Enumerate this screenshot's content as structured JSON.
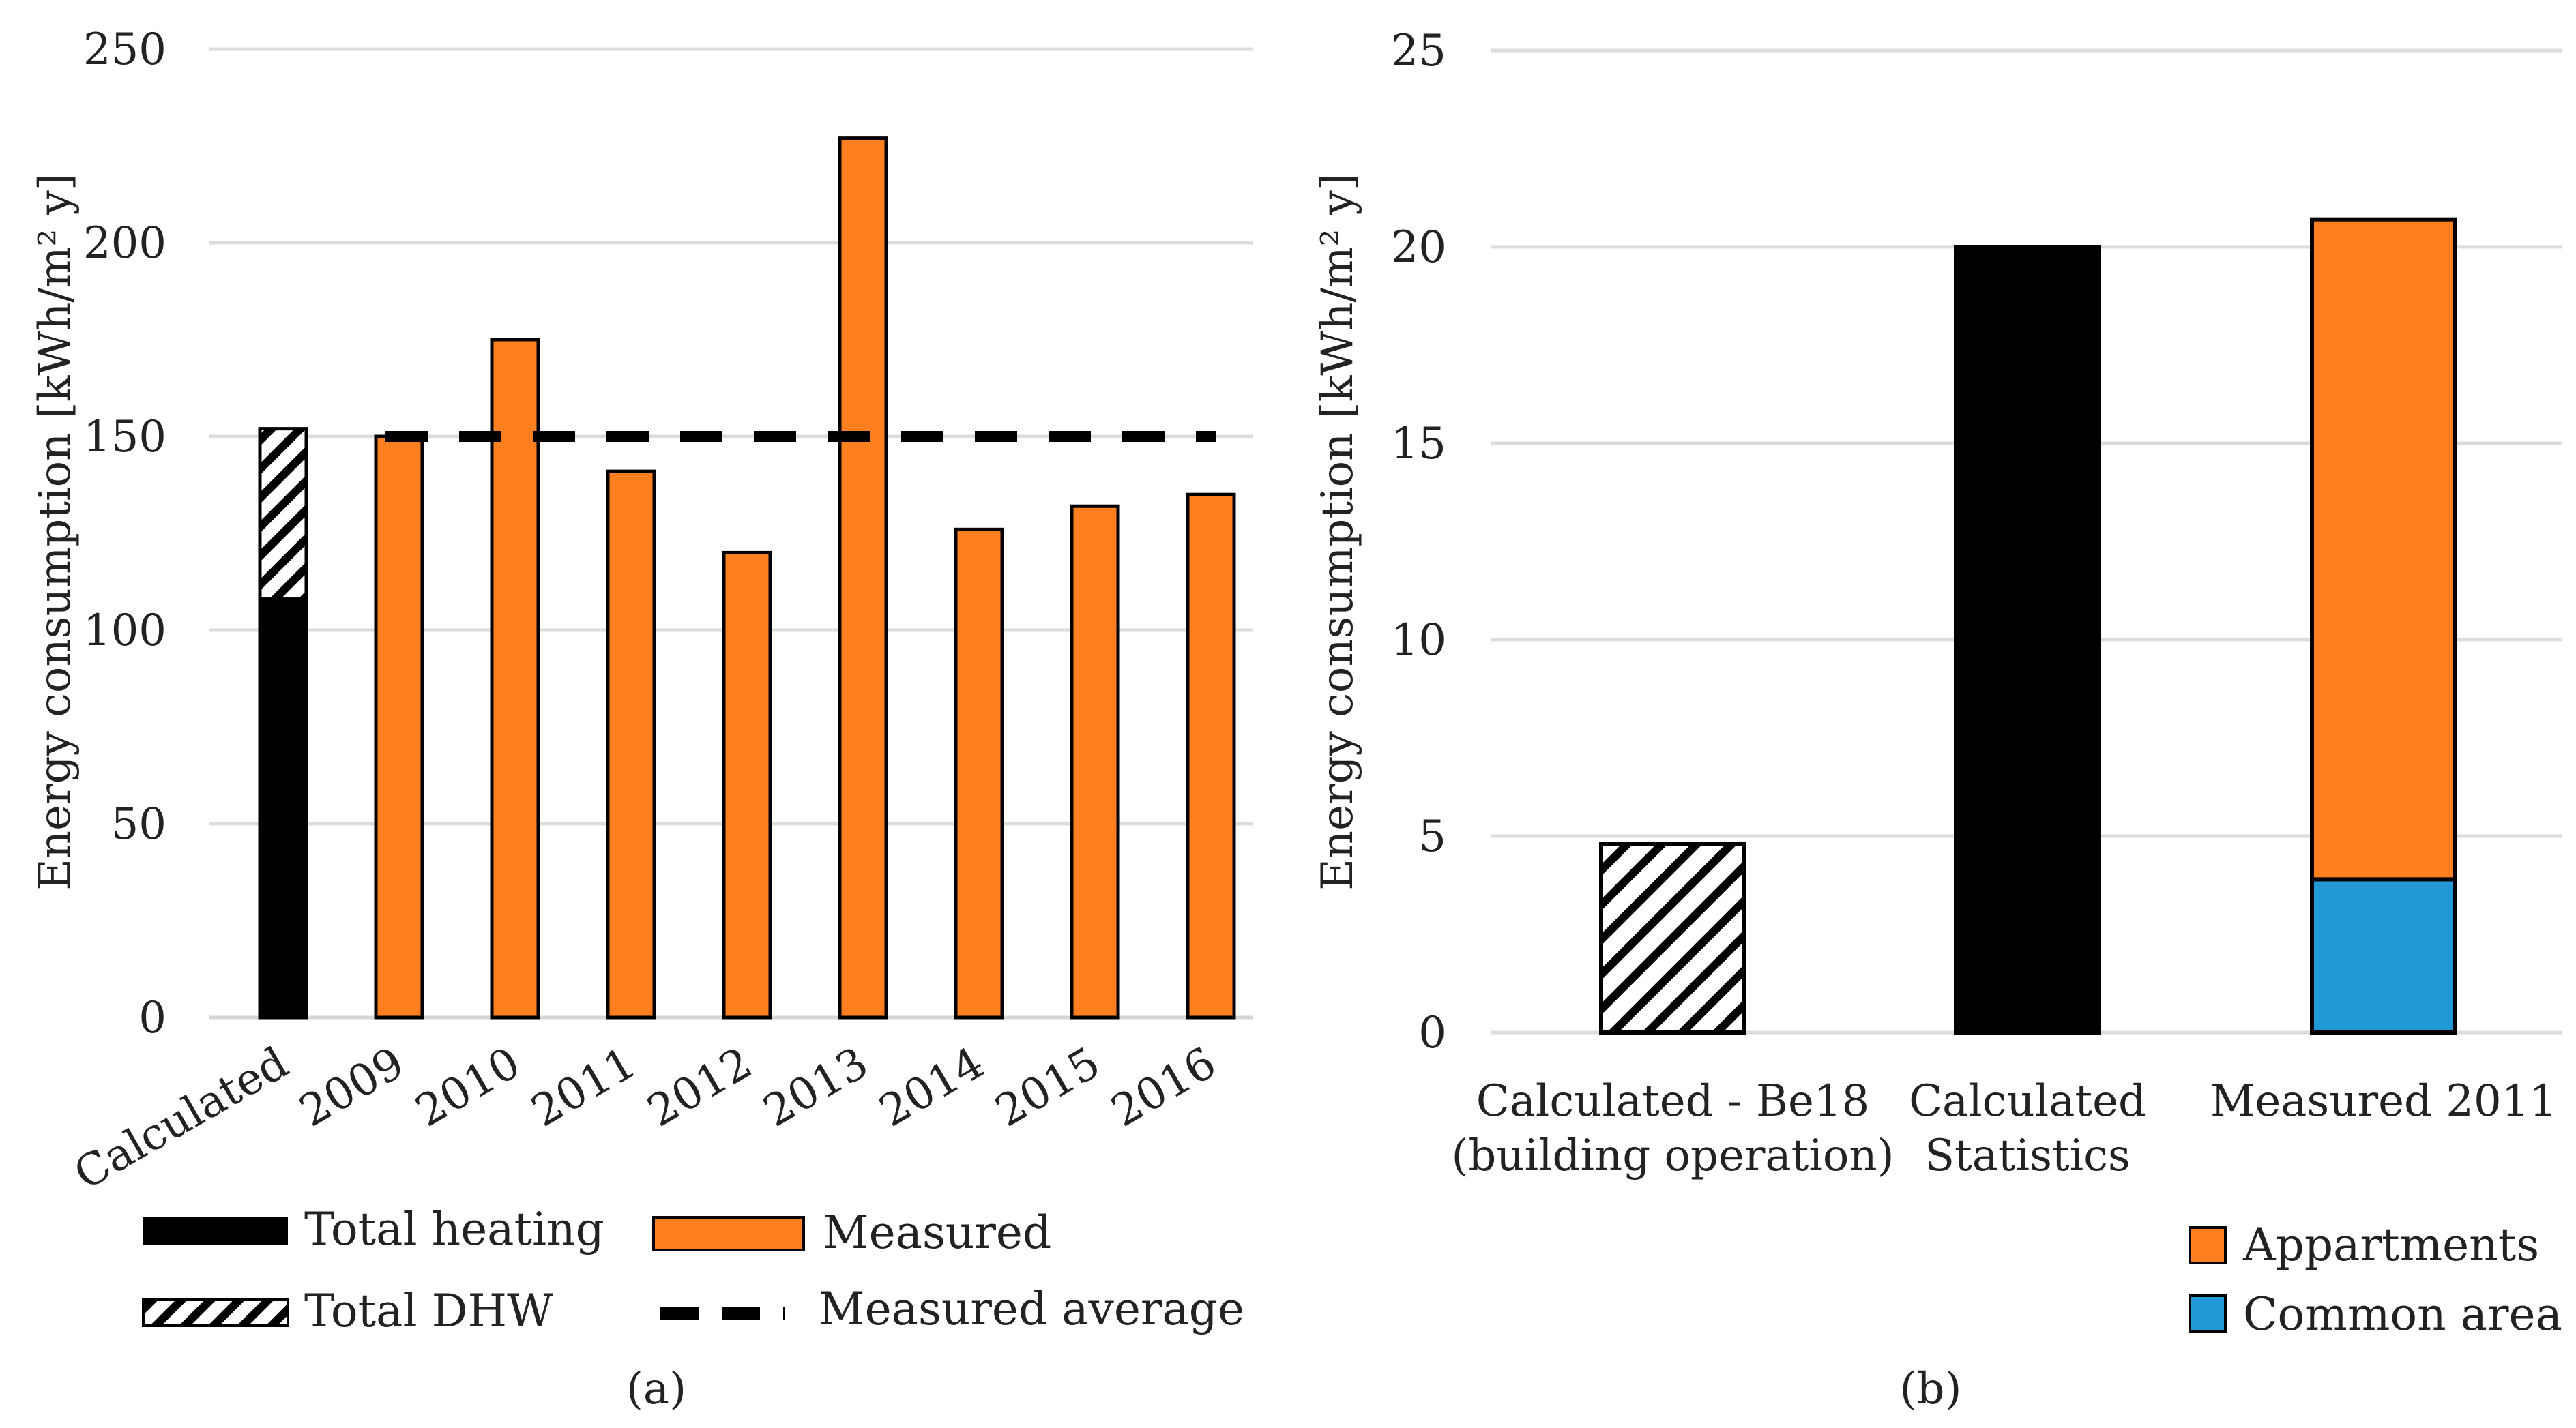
{
  "chart_data": [
    {
      "id": "a",
      "type": "bar",
      "caption": "(a)",
      "ylabel": "Energy consumption [kWh/m² y]",
      "ylim": [
        0,
        250
      ],
      "yticks": [
        "0",
        "50",
        "100",
        "150",
        "200",
        "250"
      ],
      "categories": [
        "Calculated",
        "2009",
        "2010",
        "2011",
        "2012",
        "2013",
        "2014",
        "2015",
        "2016"
      ],
      "series": [
        {
          "name": "Total heating",
          "color": "#000000",
          "pattern": "solid",
          "values": [
            108,
            null,
            null,
            null,
            null,
            null,
            null,
            null,
            null
          ]
        },
        {
          "name": "Total DHW",
          "color": "#ffffff",
          "pattern": "hatch",
          "values": [
            44,
            null,
            null,
            null,
            null,
            null,
            null,
            null,
            null
          ]
        },
        {
          "name": "Measured",
          "color": "#fd7f20",
          "pattern": "solid",
          "values": [
            null,
            150,
            175,
            141,
            120,
            227,
            126,
            132,
            135
          ]
        }
      ],
      "average": {
        "name": "Measured average",
        "value": 150,
        "style": "dashed",
        "color": "#000000"
      },
      "grid": true,
      "legend": {
        "placement": "bottom",
        "items": [
          {
            "label": "Total heating",
            "swatch": "solid-black"
          },
          {
            "label": "Measured",
            "swatch": "solid-orange"
          },
          {
            "label": "Total DHW",
            "swatch": "hatch"
          },
          {
            "label": "Measured average",
            "swatch": "dashed-line"
          }
        ]
      }
    },
    {
      "id": "b",
      "type": "bar",
      "caption": "(b)",
      "ylabel": "Energy consumption [kWh/m² y]",
      "ylim": [
        0,
        25
      ],
      "yticks": [
        "0",
        "5",
        "10",
        "15",
        "20",
        "25"
      ],
      "categories": [
        [
          "Calculated - Be18",
          "(building operation)"
        ],
        [
          "Calculated",
          "Statistics"
        ],
        [
          "Measured 2011"
        ]
      ],
      "series": [
        {
          "name": "Calculated - Be18",
          "color": "#ffffff",
          "pattern": "hatch",
          "values": [
            4.8,
            null,
            null
          ]
        },
        {
          "name": "Calculated Statistics",
          "color": "#000000",
          "pattern": "solid",
          "values": [
            null,
            20,
            null
          ]
        },
        {
          "name": "Common area",
          "color": "#2299d4",
          "pattern": "solid",
          "values": [
            null,
            null,
            3.9
          ]
        },
        {
          "name": "Appartments",
          "color": "#fd7f20",
          "pattern": "solid",
          "values": [
            null,
            null,
            16.8
          ]
        }
      ],
      "grid": true,
      "legend": {
        "placement": "bottom-right",
        "items": [
          {
            "label": "Appartments",
            "color": "#fd7f20"
          },
          {
            "label": "Common area",
            "color": "#2299d4"
          }
        ]
      }
    }
  ]
}
